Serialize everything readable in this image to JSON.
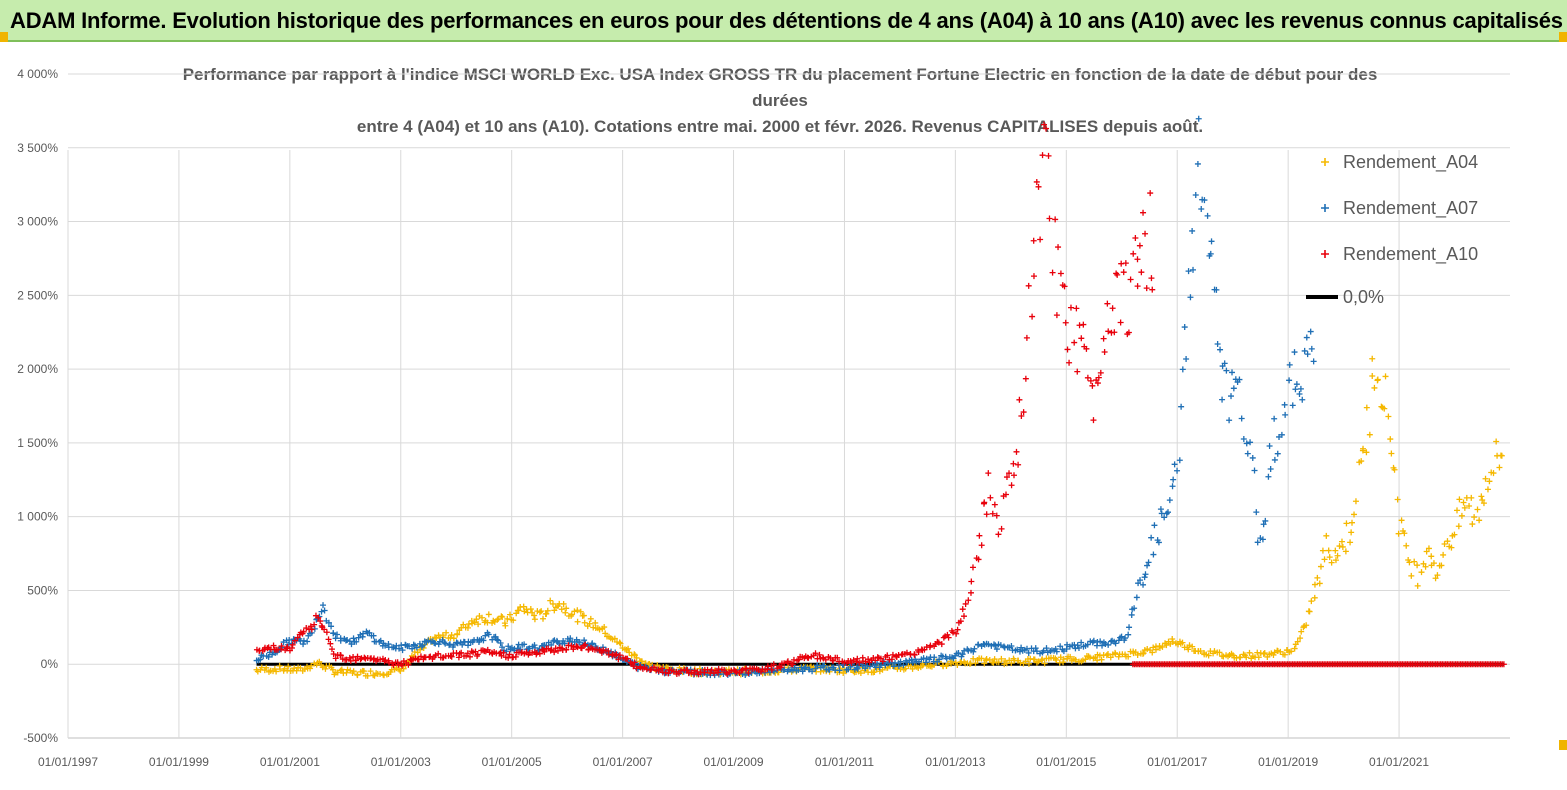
{
  "banner": {
    "title": "ADAM Informe. Evolution historique des performances en euros pour des détentions de 4 ans (A04) à 10 ans (A10) avec les revenus connus capitalisés"
  },
  "colors": {
    "banner_bg": "#c6ecad",
    "a04": "#f5b800",
    "a07": "#1f6fb5",
    "a10": "#e8000b",
    "zero": "#000000",
    "grid": "#d9d9d9"
  },
  "chart_data": {
    "type": "scatter",
    "title_lines": [
      "Performance par rapport à l'indice MSCI WORLD Exc. USA Index GROSS TR  du placement Fortune Electric  en fonction de la date de début pour des",
      "durées",
      "entre 4 (A04) et 10 ans (A10). Cotations entre mai. 2000 et févr. 2026. Revenus CAPITALISES depuis août."
    ],
    "y_ticks": [
      "4 000%",
      "3 500%",
      "3 000%",
      "2 500%",
      "2 000%",
      "1 500%",
      "1 000%",
      "500%",
      "0%",
      "-500%"
    ],
    "y_tick_values": [
      4000,
      3500,
      3000,
      2500,
      2000,
      1500,
      1000,
      500,
      0,
      -500
    ],
    "ylim": [
      -500,
      4000
    ],
    "x_ticks": [
      "01/01/1997",
      "01/01/1999",
      "01/01/2001",
      "01/01/2003",
      "01/01/2005",
      "01/01/2007",
      "01/01/2009",
      "01/01/2011",
      "01/01/2013",
      "01/01/2015",
      "01/01/2017",
      "01/01/2019",
      "01/01/2021"
    ],
    "x_tick_values": [
      1997,
      1999,
      2001,
      2003,
      2005,
      2007,
      2009,
      2011,
      2013,
      2015,
      2017,
      2019,
      2021
    ],
    "xlim": [
      1997,
      2023
    ],
    "legend": [
      "Rendement_A04",
      "Rendement_A07",
      "Rendement_A10",
      "0,0%"
    ],
    "series": [
      {
        "name": "Rendement_A04",
        "points": [
          [
            2000.4,
            -40
          ],
          [
            2000.8,
            -30
          ],
          [
            2001.2,
            -40
          ],
          [
            2001.5,
            10
          ],
          [
            2001.8,
            -50
          ],
          [
            2002.2,
            -60
          ],
          [
            2002.6,
            -60
          ],
          [
            2003.0,
            -40
          ],
          [
            2003.3,
            80
          ],
          [
            2003.6,
            180
          ],
          [
            2004.0,
            200
          ],
          [
            2004.3,
            300
          ],
          [
            2004.6,
            320
          ],
          [
            2004.9,
            280
          ],
          [
            2005.2,
            380
          ],
          [
            2005.5,
            320
          ],
          [
            2005.8,
            420
          ],
          [
            2006.0,
            380
          ],
          [
            2006.3,
            300
          ],
          [
            2006.6,
            250
          ],
          [
            2006.9,
            150
          ],
          [
            2007.2,
            60
          ],
          [
            2007.5,
            -10
          ],
          [
            2007.9,
            -40
          ],
          [
            2008.4,
            -50
          ],
          [
            2008.9,
            -50
          ],
          [
            2009.4,
            -50
          ],
          [
            2009.9,
            -40
          ],
          [
            2010.4,
            -30
          ],
          [
            2010.9,
            -40
          ],
          [
            2011.4,
            -40
          ],
          [
            2011.9,
            -30
          ],
          [
            2012.4,
            -10
          ],
          [
            2012.9,
            10
          ],
          [
            2013.4,
            20
          ],
          [
            2013.9,
            20
          ],
          [
            2014.4,
            20
          ],
          [
            2014.9,
            30
          ],
          [
            2015.4,
            40
          ],
          [
            2015.9,
            60
          ],
          [
            2016.3,
            80
          ],
          [
            2016.6,
            100
          ],
          [
            2016.9,
            160
          ],
          [
            2017.2,
            120
          ],
          [
            2017.5,
            80
          ],
          [
            2017.9,
            60
          ],
          [
            2018.4,
            60
          ],
          [
            2018.9,
            80
          ],
          [
            2019.1,
            100
          ],
          [
            2019.3,
            250
          ],
          [
            2019.5,
            500
          ],
          [
            2019.7,
            800
          ],
          [
            2019.9,
            750
          ],
          [
            2020.1,
            900
          ],
          [
            2020.3,
            1300
          ],
          [
            2020.5,
            1800
          ],
          [
            2020.6,
            2150
          ],
          [
            2020.7,
            1900
          ],
          [
            2020.8,
            1700
          ],
          [
            2020.9,
            1400
          ],
          [
            2021.0,
            1000
          ],
          [
            2021.1,
            800
          ],
          [
            2021.2,
            700
          ],
          [
            2021.35,
            600
          ],
          [
            2021.5,
            800
          ],
          [
            2021.6,
            750
          ],
          [
            2021.7,
            550
          ],
          [
            2021.8,
            800
          ],
          [
            2022.0,
            900
          ],
          [
            2022.2,
            1100
          ],
          [
            2022.4,
            1000
          ],
          [
            2022.6,
            1300
          ],
          [
            2022.8,
            1400
          ],
          [
            2022.9,
            1450
          ]
        ]
      },
      {
        "name": "Rendement_A07",
        "points": [
          [
            2000.4,
            30
          ],
          [
            2000.7,
            80
          ],
          [
            2001.0,
            160
          ],
          [
            2001.3,
            150
          ],
          [
            2001.5,
            330
          ],
          [
            2001.6,
            400
          ],
          [
            2001.8,
            200
          ],
          [
            2002.1,
            150
          ],
          [
            2002.4,
            210
          ],
          [
            2002.7,
            130
          ],
          [
            2003.0,
            110
          ],
          [
            2003.3,
            130
          ],
          [
            2003.6,
            160
          ],
          [
            2004.0,
            130
          ],
          [
            2004.3,
            140
          ],
          [
            2004.6,
            200
          ],
          [
            2004.9,
            100
          ],
          [
            2005.2,
            120
          ],
          [
            2005.5,
            110
          ],
          [
            2005.8,
            150
          ],
          [
            2006.1,
            170
          ],
          [
            2006.4,
            130
          ],
          [
            2006.7,
            100
          ],
          [
            2007.0,
            30
          ],
          [
            2007.3,
            -20
          ],
          [
            2007.7,
            -40
          ],
          [
            2008.1,
            -50
          ],
          [
            2008.6,
            -55
          ],
          [
            2009.1,
            -55
          ],
          [
            2009.6,
            -45
          ],
          [
            2010.1,
            -35
          ],
          [
            2010.6,
            -25
          ],
          [
            2011.1,
            -20
          ],
          [
            2011.6,
            -5
          ],
          [
            2012.1,
            10
          ],
          [
            2012.6,
            30
          ],
          [
            2013.1,
            60
          ],
          [
            2013.5,
            140
          ],
          [
            2013.9,
            110
          ],
          [
            2014.3,
            90
          ],
          [
            2014.7,
            90
          ],
          [
            2015.1,
            120
          ],
          [
            2015.5,
            140
          ],
          [
            2015.9,
            150
          ],
          [
            2016.1,
            200
          ],
          [
            2016.3,
            500
          ],
          [
            2016.5,
            750
          ],
          [
            2016.7,
            950
          ],
          [
            2016.9,
            1100
          ],
          [
            2017.0,
            1300
          ],
          [
            2017.1,
            1900
          ],
          [
            2017.2,
            2500
          ],
          [
            2017.3,
            3000
          ],
          [
            2017.4,
            3400
          ],
          [
            2017.5,
            3100
          ],
          [
            2017.6,
            2800
          ],
          [
            2017.7,
            2300
          ],
          [
            2017.8,
            1900
          ],
          [
            2018.0,
            1800
          ],
          [
            2018.2,
            1700
          ],
          [
            2018.35,
            1300
          ],
          [
            2018.5,
            800
          ],
          [
            2018.6,
            1100
          ],
          [
            2018.7,
            1500
          ],
          [
            2018.85,
            1600
          ],
          [
            2019.0,
            1800
          ],
          [
            2019.2,
            2000
          ],
          [
            2019.4,
            2100
          ],
          [
            2019.5,
            2200
          ]
        ]
      },
      {
        "name": "Rendement_A10",
        "points": [
          [
            2000.4,
            80
          ],
          [
            2000.7,
            120
          ],
          [
            2001.0,
            100
          ],
          [
            2001.2,
            200
          ],
          [
            2001.4,
            250
          ],
          [
            2001.5,
            330
          ],
          [
            2001.6,
            260
          ],
          [
            2001.8,
            60
          ],
          [
            2002.1,
            40
          ],
          [
            2002.4,
            50
          ],
          [
            2002.7,
            20
          ],
          [
            2003.0,
            0
          ],
          [
            2003.3,
            30
          ],
          [
            2003.6,
            50
          ],
          [
            2004.0,
            60
          ],
          [
            2004.3,
            70
          ],
          [
            2004.6,
            80
          ],
          [
            2004.9,
            60
          ],
          [
            2005.2,
            70
          ],
          [
            2005.5,
            80
          ],
          [
            2005.8,
            100
          ],
          [
            2006.1,
            120
          ],
          [
            2006.4,
            110
          ],
          [
            2006.7,
            90
          ],
          [
            2007.0,
            40
          ],
          [
            2007.3,
            -20
          ],
          [
            2007.7,
            -40
          ],
          [
            2008.1,
            -50
          ],
          [
            2008.6,
            -50
          ],
          [
            2009.1,
            -50
          ],
          [
            2009.6,
            -30
          ],
          [
            2010.1,
            20
          ],
          [
            2010.4,
            60
          ],
          [
            2010.7,
            40
          ],
          [
            2011.1,
            20
          ],
          [
            2011.6,
            30
          ],
          [
            2012.1,
            60
          ],
          [
            2012.6,
            120
          ],
          [
            2013.0,
            220
          ],
          [
            2013.2,
            400
          ],
          [
            2013.4,
            700
          ],
          [
            2013.5,
            1000
          ],
          [
            2013.6,
            1200
          ],
          [
            2013.75,
            950
          ],
          [
            2013.9,
            1100
          ],
          [
            2014.1,
            1300
          ],
          [
            2014.2,
            1800
          ],
          [
            2014.3,
            2100
          ],
          [
            2014.4,
            2700
          ],
          [
            2014.5,
            3100
          ],
          [
            2014.6,
            3400
          ],
          [
            2014.75,
            2900
          ],
          [
            2014.9,
            2400
          ],
          [
            2015.1,
            2300
          ],
          [
            2015.3,
            2100
          ],
          [
            2015.5,
            1800
          ],
          [
            2015.7,
            2300
          ],
          [
            2015.9,
            2600
          ],
          [
            2016.1,
            2500
          ],
          [
            2016.3,
            2700
          ],
          [
            2016.5,
            2900
          ],
          [
            2016.6,
            2800
          ]
        ]
      },
      {
        "name": "0,0%",
        "points": [
          [
            2000.4,
            0
          ],
          [
            2022.9,
            0
          ]
        ]
      }
    ]
  }
}
